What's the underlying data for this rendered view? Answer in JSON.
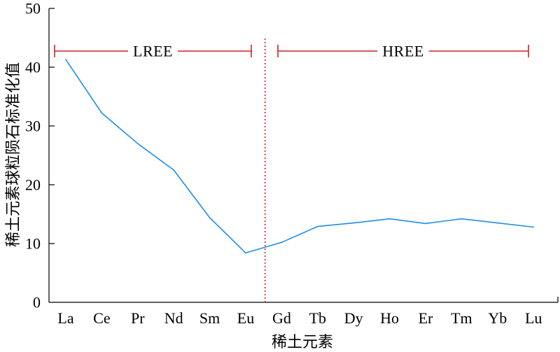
{
  "chart_data": {
    "type": "line",
    "xlabel": "稀土元素",
    "ylabel": "稀土元素球粒陨石标准化值",
    "categories": [
      "La",
      "Ce",
      "Pr",
      "Nd",
      "Sm",
      "Eu",
      "Gd",
      "Tb",
      "Dy",
      "Ho",
      "Er",
      "Tm",
      "Yb",
      "Lu"
    ],
    "series": [
      {
        "values": [
          41.3,
          32.2,
          27.0,
          22.5,
          14.4,
          8.4,
          10.2,
          12.9,
          13.5,
          14.2,
          13.4,
          14.2,
          13.5,
          12.8
        ],
        "color": "#1f8fe5"
      }
    ],
    "ylim": [
      0,
      50
    ],
    "yticks": [
      0,
      10,
      20,
      30,
      40,
      50
    ],
    "grid": false,
    "legend": false,
    "annotations": [
      {
        "label": "LREE",
        "from": "La",
        "to": "Eu",
        "color": "#cc2229"
      },
      {
        "label": "HREE",
        "from": "Gd",
        "to": "Lu",
        "color": "#cc2229"
      }
    ],
    "divider": {
      "after": "Eu",
      "color": "#cc2229"
    }
  }
}
